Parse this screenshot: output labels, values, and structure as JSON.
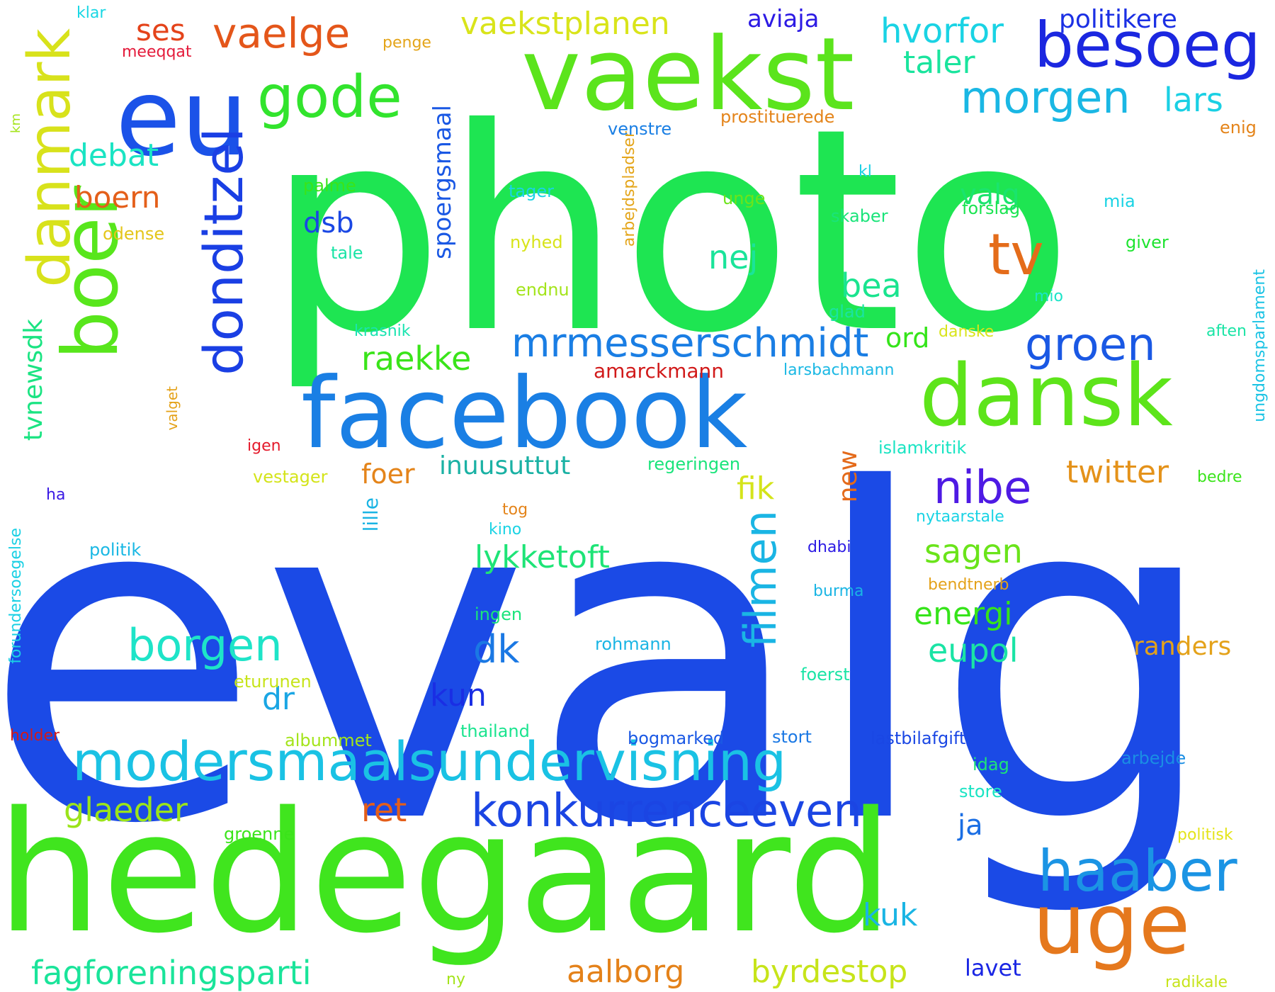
{
  "words": [
    {
      "id": "w1",
      "text": "photo",
      "color": "#1ee552"
    },
    {
      "id": "w2",
      "text": "evalg",
      "color": "#1b4ae6"
    },
    {
      "id": "w3",
      "text": "hedegaard",
      "color": "#40e51e"
    },
    {
      "id": "w4",
      "text": "vaekst",
      "color": "#5be41c"
    },
    {
      "id": "w5",
      "text": "facebook",
      "color": "#1a7fe4"
    },
    {
      "id": "w6",
      "text": "eu",
      "color": "#1b52e8"
    },
    {
      "id": "w7",
      "text": "dansk",
      "color": "#5de41a"
    },
    {
      "id": "w8",
      "text": "uge",
      "color": "#e5781d"
    },
    {
      "id": "w9",
      "text": "besoeg",
      "color": "#1b27e0"
    },
    {
      "id": "w10",
      "text": "boer",
      "color": "#58e61c",
      "vertical": true
    },
    {
      "id": "w11",
      "text": "modersmaalsundervisning",
      "color": "#1ac2e4"
    },
    {
      "id": "w12",
      "text": "danmark",
      "color": "#d8e21b",
      "vertical": true
    },
    {
      "id": "w13",
      "text": "donditzel",
      "color": "#1a3fe4",
      "vertical": true
    },
    {
      "id": "w14",
      "text": "gode",
      "color": "#32e42d"
    },
    {
      "id": "w15",
      "text": "tv",
      "color": "#e46c1a"
    },
    {
      "id": "w16",
      "text": "haaber",
      "color": "#1b94e4"
    },
    {
      "id": "w17",
      "text": "konkurrenceeven",
      "color": "#1b45e3"
    },
    {
      "id": "w18",
      "text": "morgen",
      "color": "#1ab7e4"
    },
    {
      "id": "w19",
      "text": "groen",
      "color": "#1a58e4"
    },
    {
      "id": "w20",
      "text": "mrmesserschmidt",
      "color": "#1a7ee4"
    },
    {
      "id": "w21",
      "text": "borgen",
      "color": "#1ee4c8"
    },
    {
      "id": "w22",
      "text": "nibe",
      "color": "#4e1ae4"
    },
    {
      "id": "w23",
      "text": "politikere",
      "color": "#1b30e4"
    },
    {
      "id": "w24",
      "text": "hvorfor",
      "color": "#1ad3e4"
    },
    {
      "id": "w25",
      "text": "filmen",
      "color": "#1ab5e4",
      "vertical": true
    },
    {
      "id": "w26",
      "text": "ord",
      "color": "#35e41a"
    },
    {
      "id": "w27",
      "text": "lars",
      "color": "#1ad0e4"
    },
    {
      "id": "w28",
      "text": "ret",
      "color": "#e45e1a"
    },
    {
      "id": "w29",
      "text": "fagforeningsparti",
      "color": "#1ae49a"
    },
    {
      "id": "w30",
      "text": "dk",
      "color": "#1a78e4"
    },
    {
      "id": "w31",
      "text": "energi",
      "color": "#36e41a"
    },
    {
      "id": "w32",
      "text": "aalborg",
      "color": "#e4821a"
    },
    {
      "id": "w33",
      "text": "byrdestop",
      "color": "#c7e41a"
    },
    {
      "id": "w34",
      "text": "fagforeningsparti",
      "color": "#1ae49a",
      "hidden": true
    },
    {
      "id": "w35",
      "text": "kuk",
      "color": "#1ab5e4"
    },
    {
      "id": "w36",
      "text": "eupol",
      "color": "#1ae4a5"
    },
    {
      "id": "w37",
      "text": "glaeder",
      "color": "#9be41a"
    },
    {
      "id": "w38",
      "text": "kun",
      "color": "#1a2ee4"
    },
    {
      "id": "w39",
      "text": "twitter",
      "color": "#e4921a"
    },
    {
      "id": "w40",
      "text": "sagen",
      "color": "#6ae41a"
    },
    {
      "id": "w41",
      "text": "debat",
      "color": "#1ae4c3"
    },
    {
      "id": "w42",
      "text": "taler",
      "color": "#1ae49d"
    },
    {
      "id": "w43",
      "text": "valg",
      "color": "#1ae46d"
    },
    {
      "id": "w44",
      "text": "vaekstplanen",
      "color": "#d9e41a"
    },
    {
      "id": "w45",
      "text": "boern",
      "color": "#e45f1a"
    },
    {
      "id": "w46",
      "text": "vaelge",
      "color": "#e4561a"
    },
    {
      "id": "w47",
      "text": "raekke",
      "color": "#3ae41a"
    },
    {
      "id": "w48",
      "text": "dsb",
      "color": "#1a47e4"
    },
    {
      "id": "w49",
      "text": "aviaja",
      "color": "#2c1ae4"
    },
    {
      "id": "w50",
      "text": "ses",
      "color": "#e4431a"
    },
    {
      "id": "w51",
      "text": "nej",
      "color": "#1ae49a"
    },
    {
      "id": "w52",
      "text": "lykketoft",
      "color": "#1ee477"
    },
    {
      "id": "w53",
      "text": "spoergsmaal",
      "color": "#1a58e4",
      "vertical": true
    },
    {
      "id": "w54",
      "text": "fik",
      "color": "#d4e41a"
    },
    {
      "id": "w55",
      "text": "bea",
      "color": "#1ae48f"
    },
    {
      "id": "w56",
      "text": "dr",
      "color": "#1aa6e4"
    },
    {
      "id": "w57",
      "text": "ja",
      "color": "#1a6ee4"
    },
    {
      "id": "w58",
      "text": "lavet",
      "color": "#1a26e4"
    },
    {
      "id": "w59",
      "text": "foer",
      "color": "#e4841a"
    },
    {
      "id": "w60",
      "text": "inuusuttut",
      "color": "#1ab1a4"
    },
    {
      "id": "w61",
      "text": "randers",
      "color": "#e4a21a"
    },
    {
      "id": "w62",
      "text": "new",
      "color": "#e46a1a",
      "vertical": true
    },
    {
      "id": "w63",
      "text": "tvnewsdk",
      "color": "#1ae482",
      "vertical": true
    },
    {
      "id": "w64",
      "text": "amarckmann",
      "color": "#d11a1a"
    },
    {
      "id": "w65",
      "text": "lille",
      "color": "#1ab4e4",
      "vertical": true
    },
    {
      "id": "w66",
      "text": "ungdomsparlament",
      "color": "#1ac3e4",
      "vertical": true
    },
    {
      "id": "w67",
      "text": "forundersoegelse",
      "color": "#1ad0e4",
      "vertical": true
    },
    {
      "id": "w68",
      "text": "arbejdspladser",
      "color": "#e4a51a",
      "vertical": true
    },
    {
      "id": "w69",
      "text": "meeqqat",
      "color": "#e41a3a"
    },
    {
      "id": "w70",
      "text": "klar",
      "color": "#1ad7e4"
    },
    {
      "id": "w71",
      "text": "penge",
      "color": "#e4a51a"
    },
    {
      "id": "w72",
      "text": "km",
      "color": "#a4e41a",
      "vertical": true
    },
    {
      "id": "w73",
      "text": "odense",
      "color": "#e4c61a"
    },
    {
      "id": "w74",
      "text": "venstre",
      "color": "#1a7fe4"
    },
    {
      "id": "w75",
      "text": "prostituerede",
      "color": "#e4841a"
    },
    {
      "id": "w76",
      "text": "enig",
      "color": "#e4841a"
    },
    {
      "id": "w77",
      "text": "kl",
      "color": "#1ad0e4"
    },
    {
      "id": "w78",
      "text": "palme",
      "color": "#3ae41a"
    },
    {
      "id": "w79",
      "text": "tager",
      "color": "#1ad3e4"
    },
    {
      "id": "w80",
      "text": "unge",
      "color": "#6de41a"
    },
    {
      "id": "w81",
      "text": "skaber",
      "color": "#1ae47a"
    },
    {
      "id": "w82",
      "text": "forslag",
      "color": "#1ae450"
    },
    {
      "id": "w83",
      "text": "mia",
      "color": "#1ad3e4"
    },
    {
      "id": "w84",
      "text": "giver",
      "color": "#1ee430"
    },
    {
      "id": "w85",
      "text": "tale",
      "color": "#1ae4a6"
    },
    {
      "id": "w86",
      "text": "nyhed",
      "color": "#d8e41a"
    },
    {
      "id": "w87",
      "text": "mio",
      "color": "#1ae4c7"
    },
    {
      "id": "w88",
      "text": "endnu",
      "color": "#a3e41a"
    },
    {
      "id": "w89",
      "text": "glad",
      "color": "#1ae4a1"
    },
    {
      "id": "w90",
      "text": "krasnik",
      "color": "#1ae4b0"
    },
    {
      "id": "w91",
      "text": "danske",
      "color": "#d8e41a"
    },
    {
      "id": "w92",
      "text": "aften",
      "color": "#1ae4a5"
    },
    {
      "id": "w93",
      "text": "larsbachmann",
      "color": "#1ab8e4"
    },
    {
      "id": "w94",
      "text": "valget",
      "color": "#e4a21a",
      "vertical": true
    },
    {
      "id": "w95",
      "text": "igen",
      "color": "#e41a2b"
    },
    {
      "id": "w96",
      "text": "islamkritik",
      "color": "#1ae4c3"
    },
    {
      "id": "w97",
      "text": "vestager",
      "color": "#d4e41a"
    },
    {
      "id": "w98",
      "text": "regeringen",
      "color": "#1ae47b"
    },
    {
      "id": "w99",
      "text": "bedre",
      "color": "#3ae41a"
    },
    {
      "id": "w100",
      "text": "ha",
      "color": "#3a1ae4"
    },
    {
      "id": "w101",
      "text": "tog",
      "color": "#e4841a"
    },
    {
      "id": "w102",
      "text": "nytaarstale",
      "color": "#1ad3e4"
    },
    {
      "id": "w103",
      "text": "kino",
      "color": "#1ad3e4"
    },
    {
      "id": "w104",
      "text": "politik",
      "color": "#1ab8e4"
    },
    {
      "id": "w105",
      "text": "dhabi",
      "color": "#2c1ae4"
    },
    {
      "id": "w106",
      "text": "burma",
      "color": "#1ab5e4"
    },
    {
      "id": "w107",
      "text": "bendtnerb",
      "color": "#e4a21a"
    },
    {
      "id": "w108",
      "text": "ingen",
      "color": "#1ae47b"
    },
    {
      "id": "w109",
      "text": "rohmann",
      "color": "#1ab5e4"
    },
    {
      "id": "w110",
      "text": "eturunen",
      "color": "#c7e41a"
    },
    {
      "id": "w111",
      "text": "foerst",
      "color": "#1ae4a6"
    },
    {
      "id": "w112",
      "text": "holder",
      "color": "#d11a1a"
    },
    {
      "id": "w113",
      "text": "albummet",
      "color": "#a3e41a"
    },
    {
      "id": "w114",
      "text": "thailand",
      "color": "#1ae48f"
    },
    {
      "id": "w115",
      "text": "bogmarked",
      "color": "#1a58e4"
    },
    {
      "id": "w116",
      "text": "stort",
      "color": "#1a78e4"
    },
    {
      "id": "w117",
      "text": "lastbilafgift",
      "color": "#1a47e4"
    },
    {
      "id": "w118",
      "text": "arbejde",
      "color": "#1a8ee4"
    },
    {
      "id": "w119",
      "text": "idag",
      "color": "#1ee477"
    },
    {
      "id": "w120",
      "text": "store",
      "color": "#1ae4c3"
    },
    {
      "id": "w121",
      "text": "groenne",
      "color": "#3ae41a"
    },
    {
      "id": "w122",
      "text": "politisk",
      "color": "#e4e41a"
    },
    {
      "id": "w123",
      "text": "ny",
      "color": "#a3e41a"
    },
    {
      "id": "w124",
      "text": "radikale",
      "color": "#c7e41a"
    }
  ]
}
